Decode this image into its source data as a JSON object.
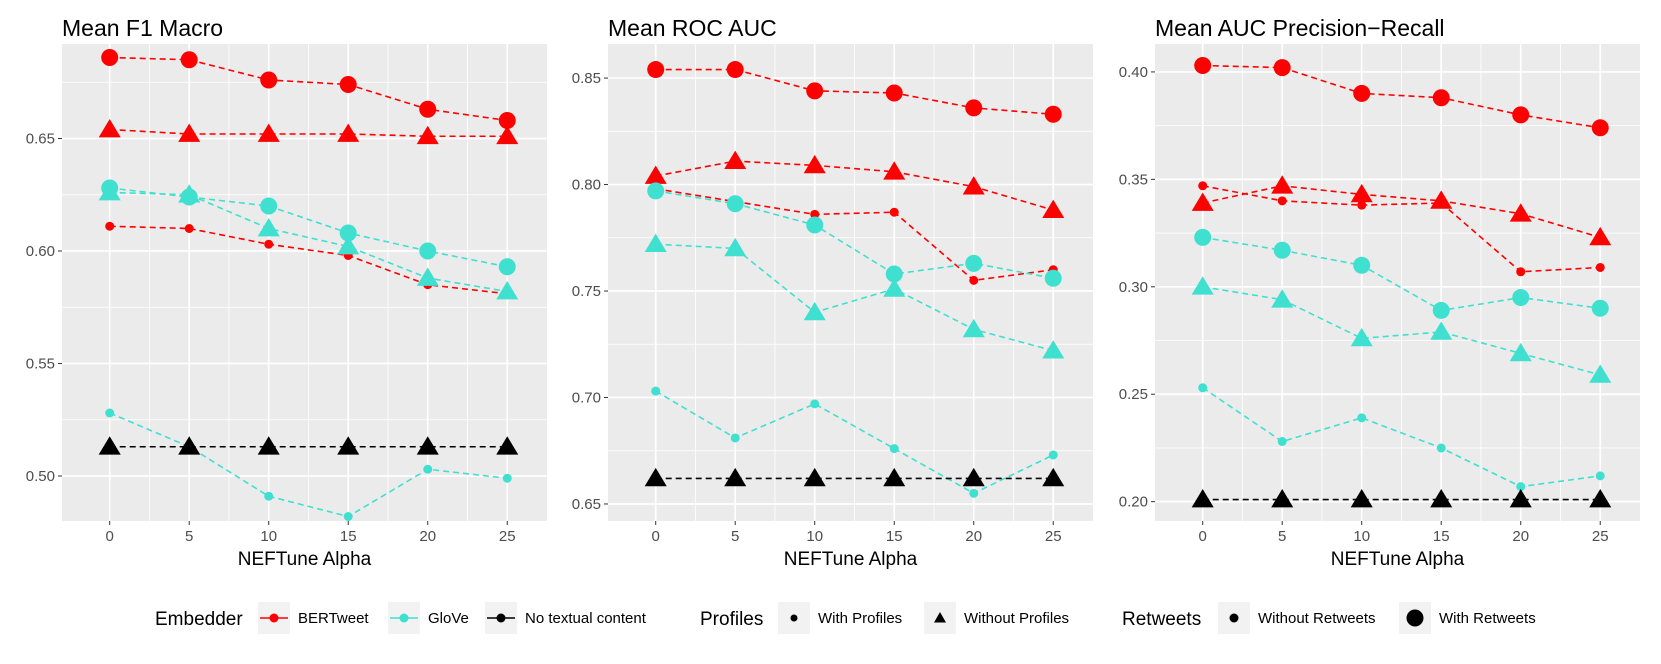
{
  "chart_data": [
    {
      "type": "line",
      "title": "Mean F1 Macro",
      "xlabel": "NEFTune Alpha",
      "ylabel": "",
      "x": [
        0,
        5,
        10,
        15,
        20,
        25
      ],
      "xlim": [
        -3,
        27.5
      ],
      "ylim": [
        0.48,
        0.692
      ],
      "yticks": [
        0.5,
        0.55,
        0.6,
        0.65
      ],
      "ytick_labels": [
        "0.50",
        "0.55",
        "0.60",
        "0.65"
      ],
      "series": [
        {
          "embedder": "BERTweet",
          "profiles": "With Profiles",
          "retweets": "With Retweets",
          "values": [
            0.686,
            0.685,
            0.676,
            0.674,
            0.663,
            0.658
          ]
        },
        {
          "embedder": "BERTweet",
          "profiles": "Without Profiles",
          "retweets": "With Retweets",
          "values": [
            0.654,
            0.652,
            0.652,
            0.652,
            0.651,
            0.651
          ]
        },
        {
          "embedder": "BERTweet",
          "profiles": "With Profiles",
          "retweets": "Without Retweets",
          "values": [
            0.611,
            0.61,
            0.603,
            0.598,
            0.585,
            0.581
          ]
        },
        {
          "embedder": "GloVe",
          "profiles": "With Profiles",
          "retweets": "With Retweets",
          "values": [
            0.628,
            0.624,
            0.62,
            0.608,
            0.6,
            0.593
          ]
        },
        {
          "embedder": "GloVe",
          "profiles": "Without Profiles",
          "retweets": "With Retweets",
          "values": [
            0.626,
            0.625,
            0.61,
            0.602,
            0.588,
            0.582
          ]
        },
        {
          "embedder": "GloVe",
          "profiles": "With Profiles",
          "retweets": "Without Retweets",
          "values": [
            0.528,
            0.513,
            0.491,
            0.482,
            0.503,
            0.499
          ]
        },
        {
          "embedder": "No textual content",
          "profiles": "Without Profiles",
          "retweets": "Without Retweets",
          "values": [
            0.513,
            0.513,
            0.513,
            0.513,
            0.513,
            0.513
          ]
        }
      ]
    },
    {
      "type": "line",
      "title": "Mean ROC AUC",
      "xlabel": "NEFTune Alpha",
      "ylabel": "",
      "x": [
        0,
        5,
        10,
        15,
        20,
        25
      ],
      "xlim": [
        -3,
        27.5
      ],
      "ylim": [
        0.642,
        0.866
      ],
      "yticks": [
        0.65,
        0.7,
        0.75,
        0.8,
        0.85
      ],
      "ytick_labels": [
        "0.65",
        "0.70",
        "0.75",
        "0.80",
        "0.85"
      ],
      "series": [
        {
          "embedder": "BERTweet",
          "profiles": "With Profiles",
          "retweets": "With Retweets",
          "values": [
            0.854,
            0.854,
            0.844,
            0.843,
            0.836,
            0.833
          ]
        },
        {
          "embedder": "BERTweet",
          "profiles": "Without Profiles",
          "retweets": "With Retweets",
          "values": [
            0.804,
            0.811,
            0.809,
            0.806,
            0.799,
            0.788
          ]
        },
        {
          "embedder": "BERTweet",
          "profiles": "With Profiles",
          "retweets": "Without Retweets",
          "values": [
            0.798,
            0.792,
            0.786,
            0.787,
            0.755,
            0.76
          ]
        },
        {
          "embedder": "GloVe",
          "profiles": "With Profiles",
          "retweets": "With Retweets",
          "values": [
            0.797,
            0.791,
            0.781,
            0.758,
            0.763,
            0.756
          ]
        },
        {
          "embedder": "GloVe",
          "profiles": "Without Profiles",
          "retweets": "With Retweets",
          "values": [
            0.772,
            0.77,
            0.74,
            0.751,
            0.732,
            0.722
          ]
        },
        {
          "embedder": "GloVe",
          "profiles": "With Profiles",
          "retweets": "Without Retweets",
          "values": [
            0.703,
            0.681,
            0.697,
            0.676,
            0.655,
            0.673
          ]
        },
        {
          "embedder": "No textual content",
          "profiles": "Without Profiles",
          "retweets": "Without Retweets",
          "values": [
            0.662,
            0.662,
            0.662,
            0.662,
            0.662,
            0.662
          ]
        }
      ]
    },
    {
      "type": "line",
      "title": "Mean AUC Precision−Recall",
      "xlabel": "NEFTune Alpha",
      "ylabel": "",
      "x": [
        0,
        5,
        10,
        15,
        20,
        25
      ],
      "xlim": [
        -3,
        27.5
      ],
      "ylim": [
        0.191,
        0.413
      ],
      "yticks": [
        0.2,
        0.25,
        0.3,
        0.35,
        0.4
      ],
      "ytick_labels": [
        "0.20",
        "0.25",
        "0.30",
        "0.35",
        "0.40"
      ],
      "series": [
        {
          "embedder": "BERTweet",
          "profiles": "With Profiles",
          "retweets": "With Retweets",
          "values": [
            0.403,
            0.402,
            0.39,
            0.388,
            0.38,
            0.374
          ]
        },
        {
          "embedder": "BERTweet",
          "profiles": "Without Profiles",
          "retweets": "With Retweets",
          "values": [
            0.339,
            0.347,
            0.343,
            0.34,
            0.334,
            0.323
          ]
        },
        {
          "embedder": "BERTweet",
          "profiles": "With Profiles",
          "retweets": "Without Retweets",
          "values": [
            0.347,
            0.34,
            0.338,
            0.339,
            0.307,
            0.309
          ]
        },
        {
          "embedder": "GloVe",
          "profiles": "With Profiles",
          "retweets": "With Retweets",
          "values": [
            0.323,
            0.317,
            0.31,
            0.289,
            0.295,
            0.29
          ]
        },
        {
          "embedder": "GloVe",
          "profiles": "Without Profiles",
          "retweets": "With Retweets",
          "values": [
            0.3,
            0.294,
            0.276,
            0.279,
            0.269,
            0.259
          ]
        },
        {
          "embedder": "GloVe",
          "profiles": "With Profiles",
          "retweets": "Without Retweets",
          "values": [
            0.253,
            0.228,
            0.239,
            0.225,
            0.207,
            0.212
          ]
        },
        {
          "embedder": "No textual content",
          "profiles": "Without Profiles",
          "retweets": "Without Retweets",
          "values": [
            0.201,
            0.201,
            0.201,
            0.201,
            0.201,
            0.201
          ]
        }
      ]
    }
  ],
  "legend": {
    "embedder": {
      "title": "Embedder",
      "items": [
        "BERTweet",
        "GloVe",
        "No textual content"
      ]
    },
    "profiles": {
      "title": "Profiles",
      "items": [
        "With Profiles",
        "Without Profiles"
      ]
    },
    "retweets": {
      "title": "Retweets",
      "items": [
        "Without Retweets",
        "With Retweets"
      ]
    }
  },
  "colors": {
    "BERTweet": "#ff0000",
    "GloVe": "#40e0d0",
    "No textual content": "#000000",
    "panel_background": "#ebebeb",
    "grid": "#ffffff"
  }
}
